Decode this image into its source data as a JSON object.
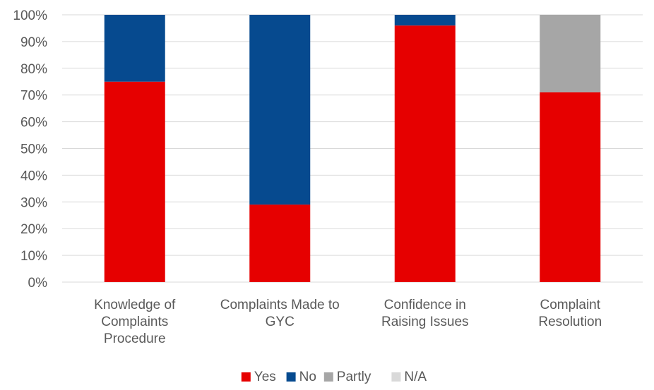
{
  "chart_data": {
    "type": "bar",
    "stacked": true,
    "percent": true,
    "categories": [
      [
        "Knowledge of",
        "Complaints",
        "Procedure"
      ],
      [
        "Complaints Made to",
        "GYC"
      ],
      [
        "Confidence in",
        "Raising Issues"
      ],
      [
        "Complaint",
        "Resolution"
      ]
    ],
    "series": [
      {
        "name": "Yes",
        "color": "#e60000",
        "values": [
          75,
          29,
          96,
          71
        ]
      },
      {
        "name": "No",
        "color": "#064a8f",
        "values": [
          25,
          71,
          4,
          0
        ]
      },
      {
        "name": "Partly",
        "color": "#a6a6a6",
        "values": [
          0,
          0,
          0,
          29
        ]
      },
      {
        "name": "N/A",
        "color": "#d9d9d9",
        "values": [
          0,
          0,
          0,
          0
        ]
      }
    ],
    "ylim": [
      0,
      100
    ],
    "yticks": [
      "0%",
      "10%",
      "20%",
      "30%",
      "40%",
      "50%",
      "60%",
      "70%",
      "80%",
      "90%",
      "100%"
    ],
    "grid": true,
    "legend": "bottom"
  }
}
